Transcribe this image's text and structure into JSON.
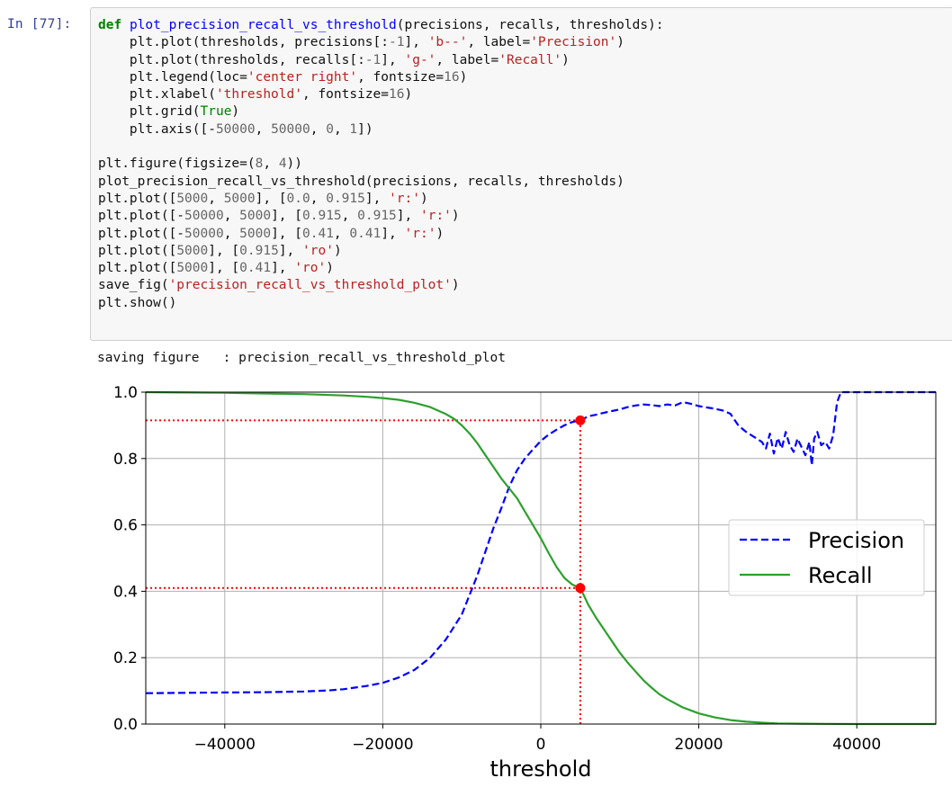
{
  "cell": {
    "prompt": "In [77]:",
    "code_lines": [
      [
        {
          "t": "def",
          "c": "kw"
        },
        {
          "t": " "
        },
        {
          "t": "plot_precision_recall_vs_threshold",
          "c": "fn"
        },
        {
          "t": "(precisions, recalls, thresholds):"
        }
      ],
      [
        {
          "t": "    plt.plot(thresholds, precisions[:"
        },
        {
          "t": "-1",
          "c": "num"
        },
        {
          "t": "], "
        },
        {
          "t": "'b--'",
          "c": "str"
        },
        {
          "t": ", label="
        },
        {
          "t": "'Precision'",
          "c": "str"
        },
        {
          "t": ")"
        }
      ],
      [
        {
          "t": "    plt.plot(thresholds, recalls[:"
        },
        {
          "t": "-1",
          "c": "num"
        },
        {
          "t": "], "
        },
        {
          "t": "'g-'",
          "c": "str"
        },
        {
          "t": ", label="
        },
        {
          "t": "'Recall'",
          "c": "str"
        },
        {
          "t": ")"
        }
      ],
      [
        {
          "t": "    plt.legend(loc="
        },
        {
          "t": "'center right'",
          "c": "str"
        },
        {
          "t": ", fontsize="
        },
        {
          "t": "16",
          "c": "num"
        },
        {
          "t": ")"
        }
      ],
      [
        {
          "t": "    plt.xlabel("
        },
        {
          "t": "'threshold'",
          "c": "str"
        },
        {
          "t": ", fontsize="
        },
        {
          "t": "16",
          "c": "num"
        },
        {
          "t": ")"
        }
      ],
      [
        {
          "t": "    plt.grid("
        },
        {
          "t": "True",
          "c": "bi"
        },
        {
          "t": ")"
        }
      ],
      [
        {
          "t": "    plt.axis([-"
        },
        {
          "t": "50000",
          "c": "num"
        },
        {
          "t": ", "
        },
        {
          "t": "50000",
          "c": "num"
        },
        {
          "t": ", "
        },
        {
          "t": "0",
          "c": "num"
        },
        {
          "t": ", "
        },
        {
          "t": "1",
          "c": "num"
        },
        {
          "t": "])"
        }
      ],
      [
        {
          "t": ""
        }
      ],
      [
        {
          "t": "plt.figure(figsize=("
        },
        {
          "t": "8",
          "c": "num"
        },
        {
          "t": ", "
        },
        {
          "t": "4",
          "c": "num"
        },
        {
          "t": "))"
        }
      ],
      [
        {
          "t": "plot_precision_recall_vs_threshold(precisions, recalls, thresholds)"
        }
      ],
      [
        {
          "t": "plt.plot(["
        },
        {
          "t": "5000",
          "c": "num"
        },
        {
          "t": ", "
        },
        {
          "t": "5000",
          "c": "num"
        },
        {
          "t": "], ["
        },
        {
          "t": "0.0",
          "c": "num"
        },
        {
          "t": ", "
        },
        {
          "t": "0.915",
          "c": "num"
        },
        {
          "t": "], "
        },
        {
          "t": "'r:'",
          "c": "str"
        },
        {
          "t": ")"
        }
      ],
      [
        {
          "t": "plt.plot([-"
        },
        {
          "t": "50000",
          "c": "num"
        },
        {
          "t": ", "
        },
        {
          "t": "5000",
          "c": "num"
        },
        {
          "t": "], ["
        },
        {
          "t": "0.915",
          "c": "num"
        },
        {
          "t": ", "
        },
        {
          "t": "0.915",
          "c": "num"
        },
        {
          "t": "], "
        },
        {
          "t": "'r:'",
          "c": "str"
        },
        {
          "t": ")"
        }
      ],
      [
        {
          "t": "plt.plot([-"
        },
        {
          "t": "50000",
          "c": "num"
        },
        {
          "t": ", "
        },
        {
          "t": "5000",
          "c": "num"
        },
        {
          "t": "], ["
        },
        {
          "t": "0.41",
          "c": "num"
        },
        {
          "t": ", "
        },
        {
          "t": "0.41",
          "c": "num"
        },
        {
          "t": "], "
        },
        {
          "t": "'r:'",
          "c": "str"
        },
        {
          "t": ")"
        }
      ],
      [
        {
          "t": "plt.plot(["
        },
        {
          "t": "5000",
          "c": "num"
        },
        {
          "t": "], ["
        },
        {
          "t": "0.915",
          "c": "num"
        },
        {
          "t": "], "
        },
        {
          "t": "'ro'",
          "c": "str"
        },
        {
          "t": ")"
        }
      ],
      [
        {
          "t": "plt.plot(["
        },
        {
          "t": "5000",
          "c": "num"
        },
        {
          "t": "], ["
        },
        {
          "t": "0.41",
          "c": "num"
        },
        {
          "t": "], "
        },
        {
          "t": "'ro'",
          "c": "str"
        },
        {
          "t": ")"
        }
      ],
      [
        {
          "t": "save_fig("
        },
        {
          "t": "'precision_recall_vs_threshold_plot'",
          "c": "str"
        },
        {
          "t": ")"
        }
      ],
      [
        {
          "t": "plt.show()"
        }
      ]
    ],
    "output_text": "saving figure   : precision_recall_vs_threshold_plot"
  },
  "chart_data": {
    "type": "line",
    "xlabel": "threshold",
    "ylabel": "",
    "xlim": [
      -50000,
      50000
    ],
    "ylim": [
      0,
      1
    ],
    "grid": true,
    "legend_position": "center right",
    "xticks": [
      -40000,
      -20000,
      0,
      20000,
      40000
    ],
    "xtick_labels": [
      "−40000",
      "−20000",
      "0",
      "20000",
      "40000"
    ],
    "yticks": [
      0,
      0.2,
      0.4,
      0.6,
      0.8,
      1.0
    ],
    "ytick_labels": [
      "0.0",
      "0.2",
      "0.4",
      "0.6",
      "0.8",
      "1.0"
    ],
    "series": [
      {
        "name": "Precision",
        "color": "#0000ff",
        "style": "dashed",
        "x": [
          -50000,
          -45000,
          -40000,
          -35000,
          -30000,
          -27000,
          -25000,
          -22000,
          -20000,
          -18000,
          -16000,
          -14000,
          -12000,
          -10000,
          -9000,
          -8000,
          -7000,
          -6000,
          -5000,
          -4000,
          -3000,
          -2000,
          -1000,
          0,
          1000,
          2000,
          3000,
          4000,
          5000,
          6000,
          7000,
          8000,
          9000,
          10000,
          11000,
          12000,
          13000,
          14000,
          15000,
          16000,
          17000,
          18000,
          19000,
          20000,
          21000,
          22000,
          23000,
          24000,
          25000,
          26000,
          27000,
          28000,
          28500,
          29000,
          29500,
          30000,
          30500,
          31000,
          31500,
          32000,
          32500,
          33000,
          33500,
          34000,
          34300,
          34600,
          35000,
          35500,
          36000,
          36500,
          37000,
          37500,
          38000,
          39000,
          40000,
          42000,
          45000,
          50000
        ],
        "y": [
          0.093,
          0.094,
          0.095,
          0.096,
          0.098,
          0.101,
          0.105,
          0.115,
          0.124,
          0.14,
          0.163,
          0.2,
          0.255,
          0.33,
          0.39,
          0.45,
          0.52,
          0.59,
          0.65,
          0.715,
          0.765,
          0.8,
          0.827,
          0.853,
          0.872,
          0.887,
          0.9,
          0.91,
          0.915,
          0.927,
          0.932,
          0.938,
          0.943,
          0.948,
          0.955,
          0.96,
          0.963,
          0.961,
          0.958,
          0.963,
          0.96,
          0.97,
          0.965,
          0.958,
          0.954,
          0.95,
          0.945,
          0.935,
          0.9,
          0.88,
          0.865,
          0.85,
          0.83,
          0.875,
          0.815,
          0.862,
          0.83,
          0.88,
          0.84,
          0.82,
          0.86,
          0.835,
          0.81,
          0.85,
          0.78,
          0.86,
          0.88,
          0.84,
          0.85,
          0.83,
          0.87,
          0.97,
          1.0,
          1.0,
          1.0,
          1.0,
          1.0,
          1.0
        ]
      },
      {
        "name": "Recall",
        "color": "#2ca02c",
        "style": "solid",
        "x": [
          -50000,
          -45000,
          -40000,
          -35000,
          -30000,
          -25000,
          -22000,
          -20000,
          -18000,
          -16000,
          -14000,
          -12000,
          -11000,
          -10000,
          -9000,
          -8000,
          -7000,
          -6000,
          -5000,
          -4000,
          -3000,
          -2000,
          -1000,
          0,
          1000,
          2000,
          3000,
          4000,
          5000,
          6000,
          7000,
          8000,
          9000,
          10000,
          11000,
          12000,
          13000,
          14000,
          15000,
          16000,
          18000,
          20000,
          22000,
          24000,
          26000,
          28000,
          30000,
          33000,
          36000,
          40000,
          45000,
          50000
        ],
        "y": [
          1.0,
          0.999,
          0.998,
          0.996,
          0.994,
          0.99,
          0.986,
          0.982,
          0.977,
          0.968,
          0.955,
          0.934,
          0.92,
          0.9,
          0.875,
          0.845,
          0.81,
          0.775,
          0.74,
          0.71,
          0.68,
          0.64,
          0.6,
          0.56,
          0.515,
          0.473,
          0.44,
          0.42,
          0.41,
          0.36,
          0.32,
          0.285,
          0.25,
          0.215,
          0.185,
          0.158,
          0.132,
          0.11,
          0.09,
          0.075,
          0.05,
          0.032,
          0.02,
          0.012,
          0.007,
          0.004,
          0.002,
          0.001,
          0.0005,
          0.0,
          0.0,
          0.0
        ]
      }
    ],
    "reference_lines": [
      {
        "x": [
          5000,
          5000
        ],
        "y": [
          0.0,
          0.915
        ],
        "color": "#ff0000"
      },
      {
        "x": [
          -50000,
          5000
        ],
        "y": [
          0.915,
          0.915
        ],
        "color": "#ff0000"
      },
      {
        "x": [
          -50000,
          5000
        ],
        "y": [
          0.41,
          0.41
        ],
        "color": "#ff0000"
      }
    ],
    "points": [
      {
        "x": 5000,
        "y": 0.915,
        "color": "#ff0000"
      },
      {
        "x": 5000,
        "y": 0.41,
        "color": "#ff0000"
      }
    ]
  }
}
